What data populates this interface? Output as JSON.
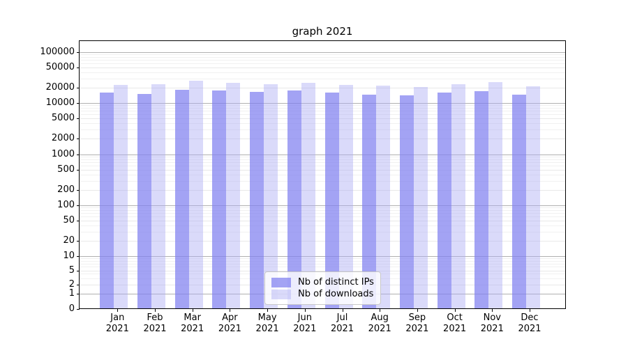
{
  "title": "graph 2021",
  "legend": {
    "items": [
      {
        "label": "Nb of distinct IPs",
        "color": "rgba(127,127,240,0.72)"
      },
      {
        "label": "Nb of downloads",
        "color": "rgba(173,173,245,0.45)"
      }
    ]
  },
  "chart_data": {
    "type": "bar",
    "title": "graph 2021",
    "yscale": "symlog",
    "grid": true,
    "legend_position": "lower center",
    "categories": [
      "Jan",
      "Feb",
      "Mar",
      "Apr",
      "May",
      "Jun",
      "Jul",
      "Aug",
      "Sep",
      "Oct",
      "Nov",
      "Dec"
    ],
    "category_year": "2021",
    "series": [
      {
        "name": "Nb of distinct IPs",
        "color": "rgba(127,127,240,0.72)",
        "values": [
          15900,
          15100,
          18400,
          17800,
          16700,
          17600,
          15900,
          14700,
          14000,
          16200,
          17200,
          14600
        ]
      },
      {
        "name": "Nb of downloads",
        "color": "rgba(173,173,245,0.45)",
        "values": [
          22700,
          23400,
          27200,
          24900,
          23400,
          24800,
          22500,
          21800,
          20600,
          23600,
          25500,
          21200
        ]
      }
    ],
    "yticks": [
      0,
      1,
      2,
      5,
      10,
      20,
      50,
      100,
      200,
      500,
      1000,
      2000,
      5000,
      10000,
      20000,
      50000,
      100000
    ],
    "ylim": [
      0,
      170000
    ],
    "xlabel": "",
    "ylabel": ""
  },
  "colors": {
    "grid_major": "#b0b0b0",
    "grid_labeled": "#e8e8e8",
    "grid_minor": "#f1f1f1",
    "spine": "#000000",
    "background": "#ffffff",
    "text": "#000000"
  }
}
